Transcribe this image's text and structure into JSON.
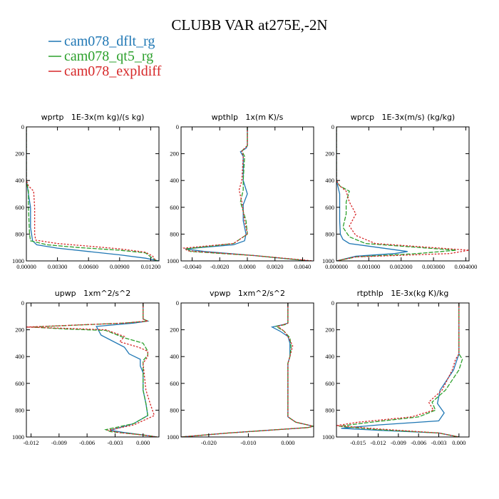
{
  "figure": {
    "title": "CLUBB VAR at275E,-2N",
    "legend": [
      {
        "label": "cam078_dflt_rg",
        "color": "#1f77b4",
        "dash": "solid"
      },
      {
        "label": "cam078_qt5_rg",
        "color": "#2ca02c",
        "dash": "dashed"
      },
      {
        "label": "cam078_expldiff",
        "color": "#d62728",
        "dash": "dotted"
      }
    ]
  },
  "chart_data": [
    {
      "type": "line",
      "title": "wprtp   1E-3x(m kg)/(s kg)",
      "xlim": [
        0,
        0.0128
      ],
      "ylim": [
        1000,
        0
      ],
      "xticks": [
        0,
        0.003,
        0.006,
        0.009,
        0.012
      ],
      "xtick_labels": [
        "0.00000",
        "0.00300",
        "0.00600",
        "0.00900",
        "0.01200"
      ],
      "yticks": [
        0,
        200,
        400,
        600,
        800,
        1000
      ],
      "ytick_labels": [
        "0",
        "200",
        "400",
        "600",
        "800",
        "1000"
      ],
      "series": [
        {
          "name": "cam078_dflt_rg",
          "x": [
            0.0,
            0.0,
            0.0001,
            0.0002,
            0.0004,
            0.0004,
            0.0005,
            0.0006,
            0.001,
            0.003,
            0.006,
            0.009,
            0.0115,
            0.0128
          ],
          "y": [
            0,
            400,
            450,
            500,
            600,
            750,
            800,
            850,
            880,
            905,
            930,
            955,
            980,
            1000
          ]
        },
        {
          "name": "cam078_qt5_rg",
          "x": [
            0.0,
            0.0,
            0.0001,
            0.0002,
            0.0002,
            0.0003,
            0.0004,
            0.002,
            0.005,
            0.009,
            0.0115,
            0.012,
            0.0126
          ],
          "y": [
            0,
            400,
            440,
            480,
            600,
            800,
            850,
            880,
            900,
            920,
            940,
            970,
            1000
          ]
        },
        {
          "name": "cam078_expldiff",
          "x": [
            0.0,
            0.0,
            0.0002,
            0.0007,
            0.0008,
            0.0008,
            0.0009,
            0.003,
            0.006,
            0.009,
            0.0115,
            0.0122,
            0.0125
          ],
          "y": [
            0,
            400,
            440,
            480,
            600,
            800,
            845,
            870,
            890,
            910,
            935,
            965,
            1000
          ]
        }
      ]
    },
    {
      "type": "line",
      "title": "wpthlp   1x(m K)/s",
      "xlim": [
        -0.0048,
        0.0048
      ],
      "ylim": [
        1000,
        0
      ],
      "xticks": [
        -0.004,
        -0.002,
        0,
        0.002,
        0.004
      ],
      "xtick_labels": [
        "-0.0040",
        "-0.0020",
        "0.0000",
        "0.0020",
        "0.0040"
      ],
      "yticks": [
        0,
        200,
        400,
        600,
        800,
        1000
      ],
      "ytick_labels": [
        "0",
        "200",
        "400",
        "600",
        "800",
        "1000"
      ],
      "series": [
        {
          "name": "cam078_dflt_rg",
          "x": [
            0.0,
            0.0,
            -0.0001,
            -0.0005,
            -0.0003,
            -0.0003,
            0.0,
            -0.0003,
            -0.0003,
            -0.0001,
            -0.0002,
            -0.001,
            -0.0045,
            -0.0031,
            0.0005,
            0.0045
          ],
          "y": [
            0,
            140,
            160,
            185,
            220,
            400,
            500,
            580,
            700,
            800,
            850,
            880,
            910,
            930,
            960,
            1000
          ]
        },
        {
          "name": "cam078_qt5_rg",
          "x": [
            0.0,
            0.0,
            -0.0002,
            -0.0004,
            -0.0002,
            -0.0003,
            -0.0003,
            -0.0005,
            -0.0001,
            0.0,
            -0.001,
            -0.0044,
            -0.0041,
            0.0005,
            0.0045
          ],
          "y": [
            0,
            140,
            160,
            180,
            220,
            400,
            470,
            560,
            700,
            800,
            870,
            910,
            930,
            960,
            1000
          ]
        },
        {
          "name": "cam078_expldiff",
          "x": [
            0.0,
            0.0,
            -0.0002,
            -0.0004,
            -0.0003,
            -0.0004,
            -0.0006,
            -0.0004,
            -0.0002,
            0.0,
            -0.001,
            -0.0046,
            -0.0043,
            0.0005,
            0.0048
          ],
          "y": [
            0,
            140,
            160,
            180,
            220,
            400,
            470,
            560,
            700,
            800,
            870,
            905,
            925,
            960,
            1000
          ]
        }
      ]
    },
    {
      "type": "line",
      "title": "wprcp   1E-3x(m/s) (kg/kg)",
      "xlim": [
        0,
        0.0041
      ],
      "ylim": [
        1000,
        0
      ],
      "xticks": [
        0,
        0.001,
        0.002,
        0.003,
        0.004
      ],
      "xtick_labels": [
        "0.000000",
        "0.001000",
        "0.002000",
        "0.003000",
        "0.004000"
      ],
      "yticks": [
        0,
        200,
        400,
        600,
        800,
        1000
      ],
      "ytick_labels": [
        "0",
        "200",
        "400",
        "600",
        "800",
        "1000"
      ],
      "series": [
        {
          "name": "cam078_dflt_rg",
          "x": [
            0.0,
            0.0,
            5e-05,
            0.0001,
            0.0001,
            0.00012,
            0.0002,
            0.0004,
            0.0022,
            0.0018,
            0.0006,
            0.0
          ],
          "y": [
            0,
            400,
            450,
            500,
            700,
            800,
            840,
            870,
            930,
            945,
            965,
            1000
          ]
        },
        {
          "name": "cam078_qt5_rg",
          "x": [
            0.0,
            0.0,
            0.0001,
            0.0004,
            0.0003,
            0.0003,
            0.0002,
            0.0004,
            0.0009,
            0.0037,
            0.0025,
            0.0006,
            0.0
          ],
          "y": [
            0,
            400,
            440,
            480,
            560,
            650,
            750,
            820,
            870,
            920,
            945,
            970,
            1000
          ]
        },
        {
          "name": "cam078_expldiff",
          "x": [
            0.0,
            0.0,
            0.0001,
            0.0003,
            0.0004,
            0.0006,
            0.0004,
            0.0006,
            0.0012,
            0.0041,
            0.0035,
            0.0006,
            0.0
          ],
          "y": [
            0,
            400,
            440,
            480,
            560,
            650,
            740,
            810,
            870,
            920,
            945,
            970,
            1000
          ]
        }
      ]
    },
    {
      "type": "line",
      "title": "upwp   1xm^2/s^2",
      "xlim": [
        -0.0125,
        0.0017
      ],
      "ylim": [
        1000,
        0
      ],
      "xticks": [
        -0.012,
        -0.009,
        -0.006,
        -0.003,
        0
      ],
      "xtick_labels": [
        "-0.012",
        "-0.009",
        "-0.006",
        "-0.003",
        "0.000"
      ],
      "yticks": [
        0,
        200,
        400,
        600,
        800,
        1000
      ],
      "ytick_labels": [
        "0",
        "200",
        "400",
        "600",
        "800",
        "1000"
      ],
      "series": [
        {
          "name": "cam078_dflt_rg",
          "x": [
            0.0,
            0.0,
            0.0005,
            -0.001,
            -0.005,
            -0.0045,
            -0.002,
            -0.0015,
            -0.0003,
            -0.0003,
            0.0,
            0.0,
            0.0003,
            0.0005,
            -0.001,
            -0.0035,
            -0.0022,
            0.0,
            0.0015
          ],
          "y": [
            0,
            120,
            135,
            150,
            175,
            240,
            330,
            380,
            420,
            470,
            520,
            650,
            750,
            840,
            900,
            950,
            965,
            985,
            1000
          ]
        },
        {
          "name": "cam078_qt5_rg",
          "x": [
            0.0,
            0.0,
            0.0005,
            -0.002,
            -0.012,
            -0.008,
            -0.004,
            -0.002,
            0.0,
            0.0005,
            0.0005,
            0.0,
            0.0,
            0.0003,
            0.0005,
            -0.001,
            -0.004,
            -0.0035,
            0.0,
            0.0015
          ],
          "y": [
            0,
            120,
            135,
            150,
            180,
            195,
            205,
            260,
            300,
            360,
            390,
            430,
            650,
            750,
            840,
            900,
            945,
            960,
            985,
            1000
          ]
        },
        {
          "name": "cam078_expldiff",
          "x": [
            0.0,
            0.0,
            0.0005,
            -0.002,
            -0.0125,
            -0.008,
            -0.004,
            -0.002,
            -0.0025,
            -0.0005,
            0.0005,
            0.0005,
            0.0,
            0.0003,
            0.0008,
            0.0012,
            -0.001,
            -0.0038,
            -0.0025,
            0.0,
            0.0015
          ],
          "y": [
            0,
            120,
            135,
            150,
            180,
            190,
            200,
            250,
            290,
            330,
            360,
            400,
            450,
            650,
            760,
            840,
            910,
            950,
            968,
            985,
            1000
          ]
        }
      ]
    },
    {
      "type": "line",
      "title": "vpwp   1xm^2/s^2",
      "xlim": [
        -0.027,
        0.0065
      ],
      "ylim": [
        1000,
        0
      ],
      "xticks": [
        -0.02,
        -0.01,
        0
      ],
      "xtick_labels": [
        "-0.020",
        "-0.010",
        "0.000"
      ],
      "yticks": [
        0,
        200,
        400,
        600,
        800,
        1000
      ],
      "ytick_labels": [
        "0",
        "200",
        "400",
        "600",
        "800",
        "1000"
      ],
      "series": [
        {
          "name": "cam078_dflt_rg",
          "x": [
            0.0,
            0.0,
            -0.001,
            -0.004,
            -0.002,
            0.0,
            0.0005,
            0.0005,
            0.0,
            0.0,
            0.002,
            0.0065,
            0.005,
            -0.015,
            -0.027
          ],
          "y": [
            0,
            150,
            160,
            180,
            210,
            250,
            300,
            400,
            450,
            850,
            890,
            920,
            930,
            970,
            1000
          ]
        },
        {
          "name": "cam078_qt5_rg",
          "x": [
            0.0,
            0.0,
            -0.0005,
            -0.003,
            -0.001,
            0.0005,
            0.0008,
            0.0005,
            0.0,
            0.0,
            0.002,
            0.0065,
            0.005,
            -0.015,
            -0.027
          ],
          "y": [
            0,
            150,
            160,
            175,
            210,
            260,
            330,
            400,
            450,
            850,
            890,
            920,
            930,
            970,
            1000
          ]
        },
        {
          "name": "cam078_expldiff",
          "x": [
            0.0,
            0.0,
            -0.001,
            -0.0025,
            -0.001,
            0.0,
            0.0012,
            0.0005,
            0.0,
            0.0,
            0.002,
            0.0065,
            0.005,
            -0.015,
            -0.027
          ],
          "y": [
            0,
            150,
            160,
            175,
            210,
            250,
            320,
            400,
            450,
            850,
            890,
            920,
            930,
            970,
            1000
          ]
        }
      ]
    },
    {
      "type": "line",
      "title": "rtpthlp   1E-3x(kg K)/kg",
      "xlim": [
        -0.0182,
        0.0015
      ],
      "ylim": [
        1000,
        0
      ],
      "xticks": [
        -0.015,
        -0.012,
        -0.009,
        -0.006,
        -0.003,
        0
      ],
      "xtick_labels": [
        "-0.015",
        "-0.012",
        "-0.009",
        "-0.006",
        "-0.003",
        "0.000"
      ],
      "yticks": [
        0,
        200,
        400,
        600,
        800,
        1000
      ],
      "ytick_labels": [
        "0",
        "200",
        "400",
        "600",
        "800",
        "1000"
      ],
      "series": [
        {
          "name": "cam078_dflt_rg",
          "x": [
            0.0,
            0.0,
            -0.0008,
            -0.0028,
            -0.0032,
            -0.0022,
            -0.003,
            -0.012,
            -0.0175,
            -0.012,
            -0.003,
            0.0
          ],
          "y": [
            0,
            380,
            500,
            650,
            750,
            820,
            880,
            910,
            935,
            950,
            970,
            1000
          ]
        },
        {
          "name": "cam078_qt5_rg",
          "x": [
            0.0,
            0.0,
            0.0005,
            0.0,
            -0.002,
            -0.004,
            -0.0035,
            -0.006,
            -0.014,
            -0.0178,
            -0.012,
            -0.003,
            0.0
          ],
          "y": [
            0,
            380,
            420,
            500,
            650,
            740,
            800,
            850,
            895,
            920,
            945,
            970,
            1000
          ]
        },
        {
          "name": "cam078_expldiff",
          "x": [
            0.0,
            0.0,
            -0.0005,
            -0.001,
            -0.0025,
            -0.0045,
            -0.0038,
            -0.007,
            -0.015,
            -0.0182,
            -0.012,
            -0.003,
            0.0
          ],
          "y": [
            0,
            380,
            420,
            500,
            650,
            740,
            800,
            850,
            890,
            915,
            940,
            970,
            1000
          ]
        }
      ]
    }
  ]
}
